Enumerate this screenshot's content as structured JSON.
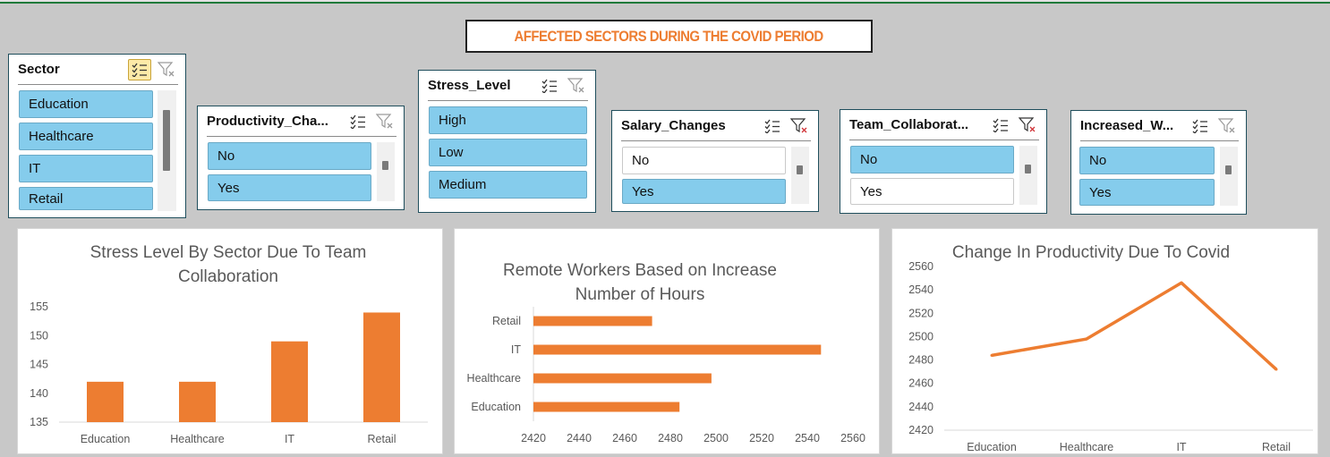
{
  "dashboard": {
    "title": "AFFECTED SECTORS DURING THE COVID PERIOD"
  },
  "slicers": [
    {
      "title": "Sector",
      "multiselect_active": true,
      "filter_cleared": true,
      "items": [
        {
          "label": "Education",
          "selected": true
        },
        {
          "label": "Healthcare",
          "selected": true
        },
        {
          "label": "IT",
          "selected": true
        },
        {
          "label": "Retail",
          "selected": true
        }
      ]
    },
    {
      "title": "Productivity_Cha...",
      "multiselect_active": false,
      "filter_cleared": true,
      "items": [
        {
          "label": "No",
          "selected": true
        },
        {
          "label": "Yes",
          "selected": true
        }
      ]
    },
    {
      "title": "Stress_Level",
      "multiselect_active": false,
      "filter_cleared": true,
      "items": [
        {
          "label": "High",
          "selected": true
        },
        {
          "label": "Low",
          "selected": true
        },
        {
          "label": "Medium",
          "selected": true
        }
      ]
    },
    {
      "title": "Salary_Changes",
      "multiselect_active": false,
      "filter_cleared": false,
      "items": [
        {
          "label": "No",
          "selected": false
        },
        {
          "label": "Yes",
          "selected": true
        }
      ]
    },
    {
      "title": "Team_Collaborat...",
      "multiselect_active": false,
      "filter_cleared": false,
      "items": [
        {
          "label": "No",
          "selected": true
        },
        {
          "label": "Yes",
          "selected": false
        }
      ]
    },
    {
      "title": "Increased_W...",
      "multiselect_active": false,
      "filter_cleared": true,
      "items": [
        {
          "label": "No",
          "selected": true
        },
        {
          "label": "Yes",
          "selected": true
        }
      ]
    }
  ],
  "colors": {
    "accent": "#ed7d31",
    "slicer_selected": "#85ccec",
    "background": "#c8c8c8"
  },
  "chart_data": [
    {
      "type": "bar",
      "title": "Stress Level By Sector Due To Team Collaboration",
      "title_lines": [
        "Stress Level By Sector Due To Team",
        "Collaboration"
      ],
      "categories": [
        "Education",
        "Healthcare",
        "IT",
        "Retail"
      ],
      "values": [
        142,
        142,
        149,
        154
      ],
      "ylim": [
        135,
        155
      ],
      "yticks": [
        135,
        140,
        145,
        150,
        155
      ],
      "grid": false,
      "legend": "none"
    },
    {
      "type": "bar",
      "orientation": "horizontal",
      "title": "Remote Workers Based on Increase Number of Hours",
      "title_lines": [
        "Remote Workers Based on Increase",
        "Number of Hours"
      ],
      "categories": [
        "Education",
        "Healthcare",
        "IT",
        "Retail"
      ],
      "values": [
        2484,
        2498,
        2546,
        2472
      ],
      "xlim": [
        2420,
        2560
      ],
      "xticks": [
        2420,
        2440,
        2460,
        2480,
        2500,
        2520,
        2540,
        2560
      ],
      "grid": false,
      "legend": "none"
    },
    {
      "type": "line",
      "title": "Change In Productivity Due To Covid",
      "title_lines": [
        "Change In Productivity Due To Covid"
      ],
      "categories": [
        "Education",
        "Healthcare",
        "IT",
        "Retail"
      ],
      "values": [
        2484,
        2498,
        2546,
        2472
      ],
      "ylim": [
        2420,
        2560
      ],
      "yticks": [
        2420,
        2440,
        2460,
        2480,
        2500,
        2520,
        2540,
        2560
      ],
      "grid": false,
      "legend": "none"
    }
  ]
}
